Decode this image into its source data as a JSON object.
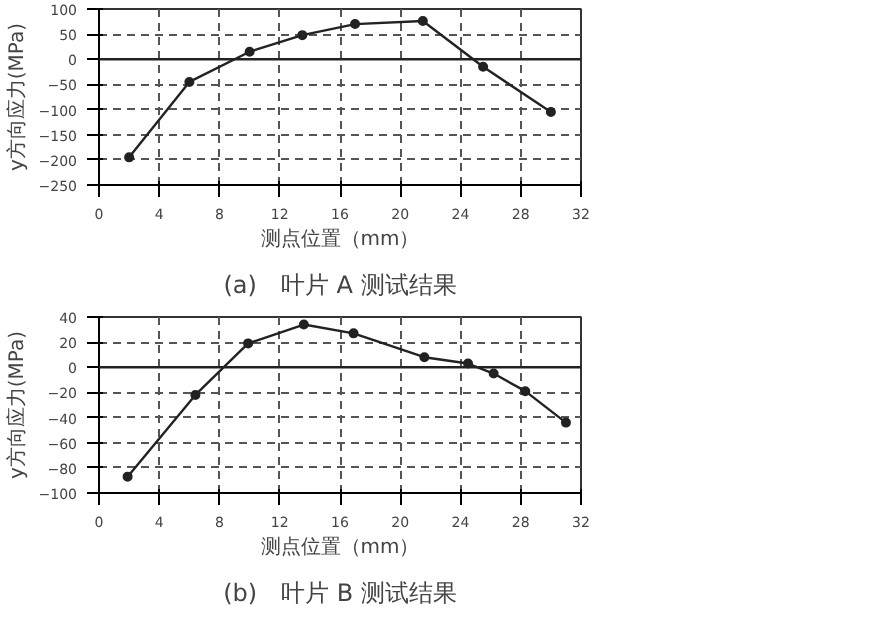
{
  "chart_data": [
    {
      "type": "line",
      "title": "(a)　叶片 A 测试结果",
      "xlabel": "测点位置（mm）",
      "ylabel": "y方向应力(MPa)",
      "x": [
        2,
        6,
        10,
        13.5,
        17,
        21.5,
        25.5,
        30
      ],
      "series": [
        {
          "color": "#222222",
          "values": [
            -195,
            -45,
            15,
            48,
            70,
            76,
            -15,
            -105
          ]
        }
      ],
      "xlim": [
        0,
        32
      ],
      "xticks": [
        0,
        4,
        8,
        12,
        16,
        20,
        24,
        28,
        32
      ],
      "ylim": [
        -250,
        100
      ],
      "yticks": [
        -250,
        -200,
        -150,
        -100,
        -50,
        0,
        50,
        100
      ],
      "grid": true,
      "marker": "circle",
      "line_style": "solid",
      "ref_lines": [
        {
          "axis": "y",
          "value": 0
        }
      ]
    },
    {
      "type": "line",
      "title": "(b)　叶片 B 测试结果",
      "xlabel": "测点位置（mm）",
      "ylabel": "y方向应力(MPa)",
      "x": [
        1.9,
        6.4,
        9.9,
        13.6,
        16.9,
        21.6,
        24.5,
        26.2,
        28.3,
        31
      ],
      "series": [
        {
          "color": "#222222",
          "values": [
            -87,
            -22,
            19,
            34,
            27,
            8,
            3,
            -5,
            -19,
            -44
          ]
        }
      ],
      "xlim": [
        0,
        32
      ],
      "xticks": [
        0,
        4,
        8,
        12,
        16,
        20,
        24,
        28,
        32
      ],
      "ylim": [
        -100,
        40
      ],
      "yticks": [
        -100,
        -80,
        -60,
        -40,
        -20,
        0,
        20,
        40
      ],
      "grid": true,
      "marker": "circle",
      "line_style": "solid",
      "ref_lines": [
        {
          "axis": "y",
          "value": 0
        }
      ]
    }
  ]
}
